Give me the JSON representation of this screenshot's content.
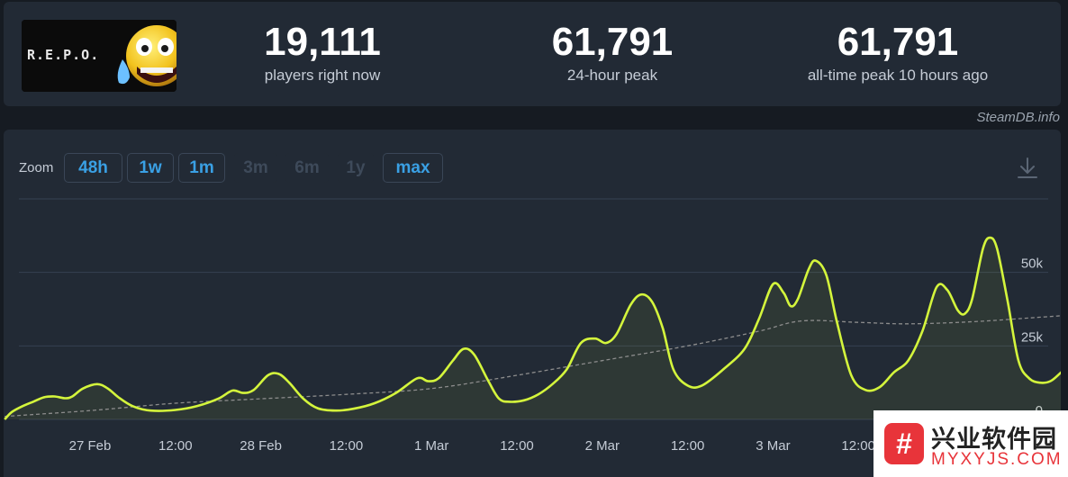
{
  "game": {
    "logo_text": "R.E.P.O."
  },
  "stats": [
    {
      "value": "19,111",
      "label": "players right now"
    },
    {
      "value": "61,791",
      "label": "24-hour peak"
    },
    {
      "value": "61,791",
      "label": "all-time peak 10 hours ago"
    }
  ],
  "source": "SteamDB.info",
  "zoom": {
    "label": "Zoom",
    "buttons": [
      {
        "label": "48h",
        "enabled": true
      },
      {
        "label": "1w",
        "enabled": true
      },
      {
        "label": "1m",
        "enabled": true
      },
      {
        "label": "3m",
        "enabled": false
      },
      {
        "label": "6m",
        "enabled": false
      },
      {
        "label": "1y",
        "enabled": false
      },
      {
        "label": "max",
        "enabled": true
      }
    ]
  },
  "icons": {
    "download": "download-icon"
  },
  "colors": {
    "players_line": "#d4f53c",
    "average_line": "#8c8c8c",
    "accent": "#3aa0e4"
  },
  "chart_data": {
    "type": "line",
    "title": "",
    "x_unit": "hours since 26 Feb 12:00",
    "x_ticks": [
      {
        "x": 12,
        "label": "27 Feb"
      },
      {
        "x": 24,
        "label": "12:00"
      },
      {
        "x": 36,
        "label": "28 Feb"
      },
      {
        "x": 48,
        "label": "12:00"
      },
      {
        "x": 60,
        "label": "1 Mar"
      },
      {
        "x": 72,
        "label": "12:00"
      },
      {
        "x": 84,
        "label": "2 Mar"
      },
      {
        "x": 96,
        "label": "12:00"
      },
      {
        "x": 108,
        "label": "3 Mar"
      },
      {
        "x": 120,
        "label": "12:00"
      }
    ],
    "y_ticks": [
      {
        "y": 0,
        "label": "0"
      },
      {
        "y": 25000,
        "label": "25k"
      },
      {
        "y": 50000,
        "label": "50k"
      }
    ],
    "xlim": [
      0,
      144
    ],
    "ylim": [
      0,
      75000
    ],
    "grid": true,
    "series": [
      {
        "style": "solid",
        "points": [
          [
            0,
            0
          ],
          [
            1,
            2500
          ],
          [
            2.5,
            4500
          ],
          [
            4,
            6000
          ],
          [
            5.5,
            7500
          ],
          [
            7,
            7800
          ],
          [
            8.5,
            7200
          ],
          [
            9.5,
            7800
          ],
          [
            11,
            10500
          ],
          [
            13,
            12000
          ],
          [
            14.5,
            10500
          ],
          [
            16,
            7500
          ],
          [
            18,
            4500
          ],
          [
            20.5,
            3000
          ],
          [
            24,
            3200
          ],
          [
            27,
            4500
          ],
          [
            30,
            7000
          ],
          [
            32,
            9800
          ],
          [
            33.5,
            9000
          ],
          [
            35,
            10000
          ],
          [
            37,
            15000
          ],
          [
            38.5,
            15500
          ],
          [
            40,
            12500
          ],
          [
            42,
            7000
          ],
          [
            44,
            3800
          ],
          [
            46.5,
            3000
          ],
          [
            49,
            3600
          ],
          [
            52,
            5500
          ],
          [
            55,
            9000
          ],
          [
            58,
            14000
          ],
          [
            59.5,
            13000
          ],
          [
            61,
            14000
          ],
          [
            63,
            20000
          ],
          [
            64.5,
            24000
          ],
          [
            66,
            22000
          ],
          [
            68,
            13000
          ],
          [
            69.5,
            7000
          ],
          [
            71,
            6000
          ],
          [
            73,
            6500
          ],
          [
            75,
            8500
          ],
          [
            77,
            12000
          ],
          [
            79,
            17000
          ],
          [
            81,
            26000
          ],
          [
            83,
            27500
          ],
          [
            84.5,
            26000
          ],
          [
            86,
            29000
          ],
          [
            88,
            39000
          ],
          [
            89.5,
            42500
          ],
          [
            91,
            40000
          ],
          [
            92.5,
            31000
          ],
          [
            94,
            17000
          ],
          [
            96,
            11500
          ],
          [
            98,
            11500
          ],
          [
            101,
            17000
          ],
          [
            104,
            24000
          ],
          [
            106,
            34000
          ],
          [
            108,
            46000
          ],
          [
            109.5,
            43000
          ],
          [
            110.5,
            38500
          ],
          [
            111.5,
            41000
          ],
          [
            113,
            51000
          ],
          [
            114,
            54000
          ],
          [
            115.5,
            49000
          ],
          [
            117,
            33000
          ],
          [
            119,
            15000
          ],
          [
            121,
            10000
          ],
          [
            123,
            11000
          ],
          [
            125,
            16000
          ],
          [
            127,
            20000
          ],
          [
            129,
            30000
          ],
          [
            131,
            45000
          ],
          [
            132.5,
            44000
          ],
          [
            134,
            37000
          ],
          [
            135,
            36000
          ],
          [
            136,
            41000
          ],
          [
            137.5,
            58000
          ],
          [
            138.5,
            61791
          ],
          [
            139.5,
            58000
          ],
          [
            141,
            40000
          ],
          [
            142.5,
            20000
          ],
          [
            144,
            14000
          ],
          [
            145.5,
            12500
          ],
          [
            147,
            13000
          ],
          [
            148.5,
            16000
          ],
          [
            150,
            19111
          ]
        ]
      },
      {
        "style": "dashed",
        "points": [
          [
            0,
            1000
          ],
          [
            12,
            3000
          ],
          [
            24,
            5500
          ],
          [
            36,
            7000
          ],
          [
            48,
            8500
          ],
          [
            60,
            10500
          ],
          [
            72,
            15000
          ],
          [
            84,
            20000
          ],
          [
            96,
            25000
          ],
          [
            106,
            30000
          ],
          [
            112,
            33500
          ],
          [
            120,
            33000
          ],
          [
            126,
            32500
          ],
          [
            132,
            32800
          ],
          [
            138,
            33500
          ],
          [
            144,
            34500
          ],
          [
            150,
            35500
          ]
        ]
      }
    ]
  },
  "watermark": {
    "icon_glyph": "#",
    "title": "兴业软件园",
    "url": "MYXYJS.COM"
  }
}
